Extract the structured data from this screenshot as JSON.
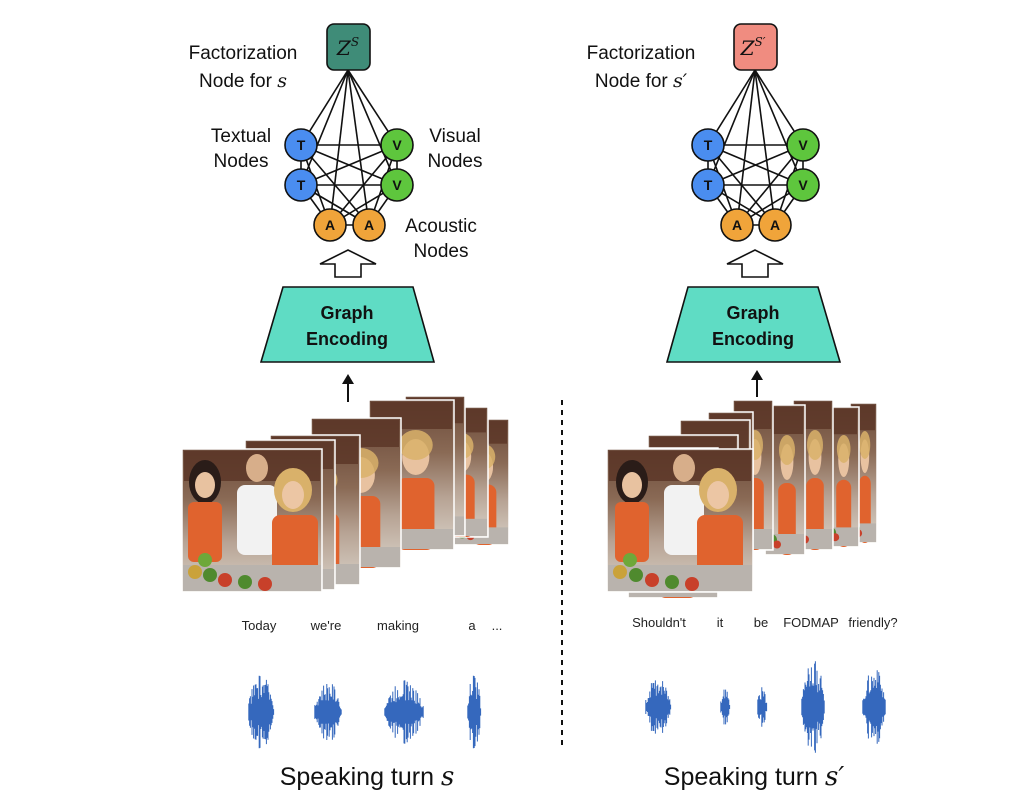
{
  "colors": {
    "textual_node": "#4a8df0",
    "visual_node": "#5ec63d",
    "acoustic_node": "#f0a43a",
    "factor_s": "#3f8c78",
    "factor_s_prime": "#f08c80",
    "encoder": "#5fdcc4",
    "waveform": "#3568bd"
  },
  "left": {
    "factor_label_1": "Factorization",
    "factor_label_2_prefix": "Node for ",
    "factor_label_var": "s",
    "factor_symbol": "Z",
    "factor_sup": "S",
    "textual_label_1": "Textual",
    "textual_label_2": "Nodes",
    "visual_label_1": "Visual",
    "visual_label_2": "Nodes",
    "acoustic_label_1": "Acoustic",
    "acoustic_label_2": "Nodes",
    "node_t": "T",
    "node_v": "V",
    "node_a": "A",
    "encoder_1": "Graph",
    "encoder_2": "Encoding",
    "words": [
      "Today",
      "we're",
      "making",
      "a",
      "..."
    ],
    "turn_prefix": "Speaking turn ",
    "turn_var": "s"
  },
  "right": {
    "factor_label_1": "Factorization",
    "factor_label_2_prefix": "Node for ",
    "factor_label_var": "s′",
    "factor_symbol": "Z",
    "factor_sup": "S′",
    "node_t": "T",
    "node_v": "V",
    "node_a": "A",
    "encoder_1": "Graph",
    "encoder_2": "Encoding",
    "words": [
      "Shouldn't",
      "it",
      "be",
      "FODMAP",
      "friendly?"
    ],
    "turn_prefix": "Speaking turn ",
    "turn_var": "s′"
  }
}
